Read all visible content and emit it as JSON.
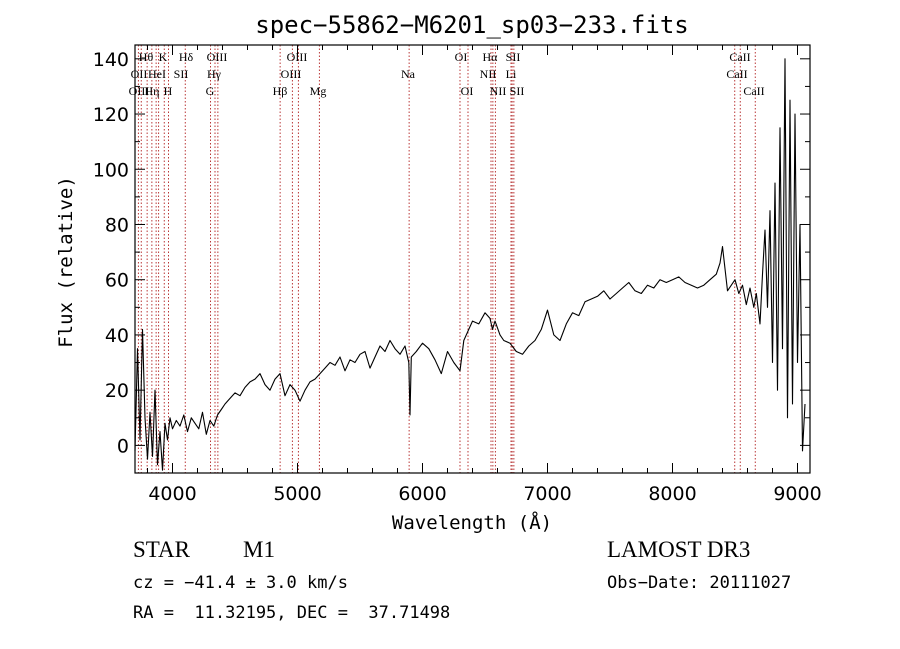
{
  "chart_data": {
    "type": "line",
    "title": "spec−55862−M6201_sp03−233.fits",
    "xlabel": "Wavelength (Å)",
    "ylabel": "Flux (relative)",
    "xlim": [
      3700,
      9100
    ],
    "ylim": [
      -10,
      145
    ],
    "xticks": [
      4000,
      5000,
      6000,
      7000,
      8000,
      9000
    ],
    "yticks": [
      0,
      20,
      40,
      60,
      80,
      100,
      120,
      140
    ],
    "grid": false,
    "series": [
      {
        "name": "flux",
        "x": [
          3700,
          3720,
          3740,
          3760,
          3780,
          3800,
          3820,
          3840,
          3860,
          3880,
          3900,
          3920,
          3940,
          3960,
          3980,
          4000,
          4030,
          4060,
          4090,
          4120,
          4150,
          4180,
          4210,
          4240,
          4270,
          4300,
          4330,
          4360,
          4390,
          4420,
          4460,
          4500,
          4540,
          4580,
          4620,
          4660,
          4700,
          4740,
          4780,
          4820,
          4860,
          4900,
          4940,
          4980,
          5020,
          5060,
          5100,
          5140,
          5180,
          5220,
          5260,
          5300,
          5340,
          5380,
          5420,
          5460,
          5500,
          5540,
          5580,
          5620,
          5660,
          5700,
          5740,
          5780,
          5820,
          5860,
          5890,
          5900,
          5910,
          5950,
          6000,
          6050,
          6100,
          6150,
          6200,
          6250,
          6300,
          6330,
          6360,
          6400,
          6450,
          6500,
          6540,
          6560,
          6580,
          6620,
          6650,
          6700,
          6750,
          6800,
          6850,
          6900,
          6950,
          7000,
          7050,
          7100,
          7150,
          7200,
          7250,
          7300,
          7350,
          7400,
          7450,
          7500,
          7550,
          7600,
          7650,
          7700,
          7750,
          7800,
          7850,
          7900,
          7950,
          8000,
          8050,
          8100,
          8150,
          8200,
          8250,
          8300,
          8350,
          8380,
          8400,
          8420,
          8440,
          8470,
          8500,
          8530,
          8560,
          8590,
          8620,
          8650,
          8670,
          8700,
          8720,
          8740,
          8760,
          8780,
          8800,
          8820,
          8840,
          8860,
          8880,
          8900,
          8920,
          8940,
          8960,
          8980,
          9000,
          9020,
          9040,
          9060
        ],
        "y": [
          -2,
          35,
          2,
          42,
          10,
          -5,
          12,
          -4,
          20,
          -7,
          5,
          -9,
          8,
          2,
          10,
          6,
          9,
          7,
          11,
          5,
          10,
          8,
          6,
          12,
          4,
          9,
          7,
          11,
          13,
          15,
          17,
          19,
          18,
          21,
          23,
          24,
          26,
          22,
          20,
          24,
          26,
          18,
          22,
          20,
          16,
          20,
          23,
          24,
          26,
          28,
          30,
          29,
          32,
          27,
          31,
          30,
          33,
          34,
          28,
          32,
          36,
          34,
          38,
          35,
          33,
          36,
          30,
          11,
          32,
          34,
          37,
          35,
          31,
          26,
          34,
          30,
          27,
          38,
          41,
          45,
          44,
          48,
          46,
          42,
          45,
          40,
          38,
          37,
          34,
          33,
          36,
          38,
          42,
          49,
          40,
          38,
          44,
          48,
          47,
          52,
          53,
          54,
          56,
          53,
          55,
          57,
          59,
          56,
          55,
          58,
          57,
          60,
          59,
          60,
          61,
          59,
          58,
          57,
          58,
          60,
          62,
          66,
          72,
          64,
          56,
          58,
          60,
          55,
          58,
          51,
          57,
          50,
          55,
          44,
          62,
          78,
          50,
          85,
          30,
          95,
          20,
          115,
          35,
          140,
          10,
          125,
          15,
          120,
          30,
          80,
          -2,
          15
        ]
      }
    ],
    "lines_row1": [
      "Hθ",
      "K",
      "Hδ",
      "OIII",
      "OIII",
      "OI",
      "Hα",
      "SII",
      "CaII"
    ],
    "lines_row2": [
      "OII",
      "He",
      "I",
      "SII",
      "Hγ",
      "OIII",
      "Na",
      "NII",
      "Li",
      "CaII"
    ],
    "lines_row3": [
      "OIII",
      "Hη",
      "H",
      "G",
      "Hβ",
      "Mg",
      "OI",
      "NII",
      "SII",
      "CaII"
    ]
  },
  "info": {
    "class": "STAR",
    "subclass": "M1",
    "survey": "LAMOST DR3",
    "cz": "cz = −41.4 ± 3.0 km/s",
    "obs_date": "Obs−Date: 20111027",
    "coords": "RA =  11.32195, DEC =  37.71498"
  }
}
